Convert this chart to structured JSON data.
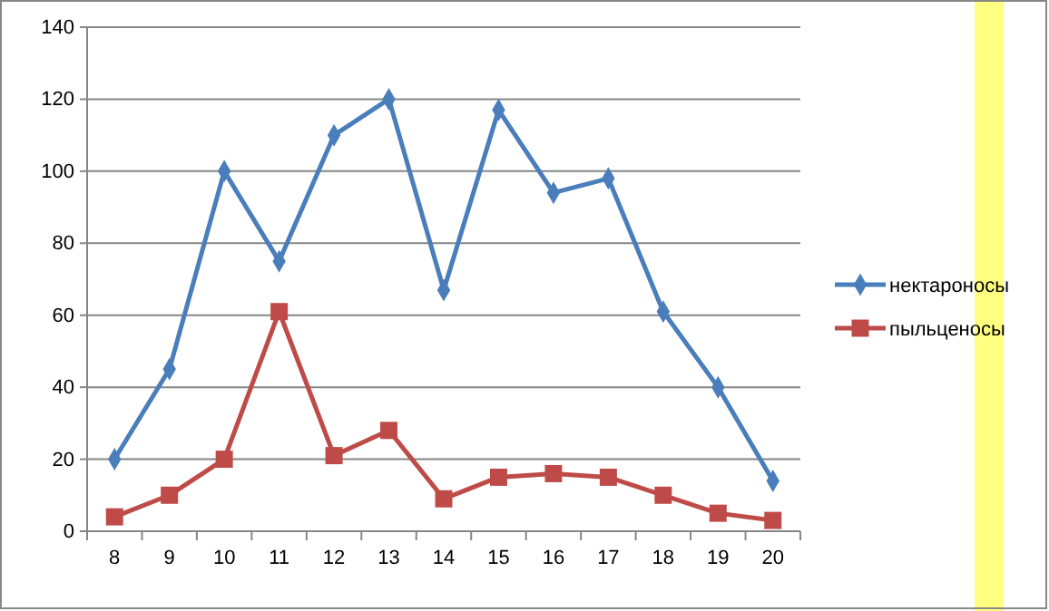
{
  "chart_data": {
    "type": "line",
    "categories": [
      "8",
      "9",
      "10",
      "11",
      "12",
      "13",
      "14",
      "15",
      "16",
      "17",
      "18",
      "19",
      "20"
    ],
    "series": [
      {
        "name": "нектароносы",
        "color": "#4a7ebb",
        "marker": "diamond",
        "values": [
          20,
          45,
          100,
          75,
          110,
          120,
          67,
          117,
          94,
          98,
          61,
          40,
          14
        ]
      },
      {
        "name": "пыльценосы",
        "color": "#be4b48",
        "marker": "square",
        "values": [
          4,
          10,
          20,
          61,
          21,
          28,
          9,
          15,
          16,
          15,
          10,
          5,
          3
        ]
      }
    ],
    "ylim": [
      0,
      140
    ],
    "yticks": [
      0,
      20,
      40,
      60,
      80,
      100,
      120,
      140
    ],
    "grid": "y",
    "legend": "right"
  }
}
